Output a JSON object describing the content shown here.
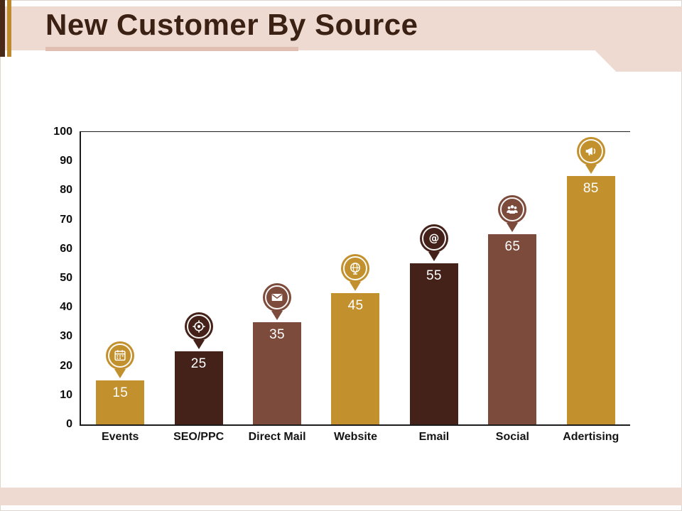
{
  "slide": {
    "title": "New Customer By Source"
  },
  "theme": {
    "gold": "#C2912E",
    "dark_brown": "#44221A",
    "medium_brown": "#7C4B3C",
    "title_color": "#3A2114",
    "band_pink": "#EEDAD1",
    "underline_pink": "#E0BFB2",
    "stripe_dark": "#4A2A16",
    "stripe_gold": "#BD8B2E",
    "value_label_color": "#FFFFFF",
    "axis_color": "#1C1C1C"
  },
  "chart_data": {
    "type": "bar",
    "title": "New Customer By Source",
    "xlabel": "",
    "ylabel": "",
    "categories": [
      "Events",
      "SEO/PPC",
      "Direct Mail",
      "Website",
      "Email",
      "Social",
      "Adertising"
    ],
    "values": [
      15,
      25,
      35,
      45,
      55,
      65,
      85
    ],
    "value_labels": [
      "15",
      "25",
      "35",
      "45",
      "55",
      "65",
      "85"
    ],
    "bar_colors": [
      "gold",
      "dark_brown",
      "medium_brown",
      "gold",
      "dark_brown",
      "medium_brown",
      "gold"
    ],
    "icons": [
      "calendar-icon",
      "target-icon",
      "envelope-icon",
      "globe-icon",
      "at-icon",
      "people-icon",
      "megaphone-icon"
    ],
    "ylim": [
      0,
      100
    ],
    "ytick_step": 10,
    "ytick_labels": [
      "0",
      "10",
      "20",
      "30",
      "40",
      "50",
      "60",
      "70",
      "80",
      "90",
      "100"
    ],
    "grid": "off",
    "legend": "none",
    "marker_style": "map-pin-above-bar"
  }
}
